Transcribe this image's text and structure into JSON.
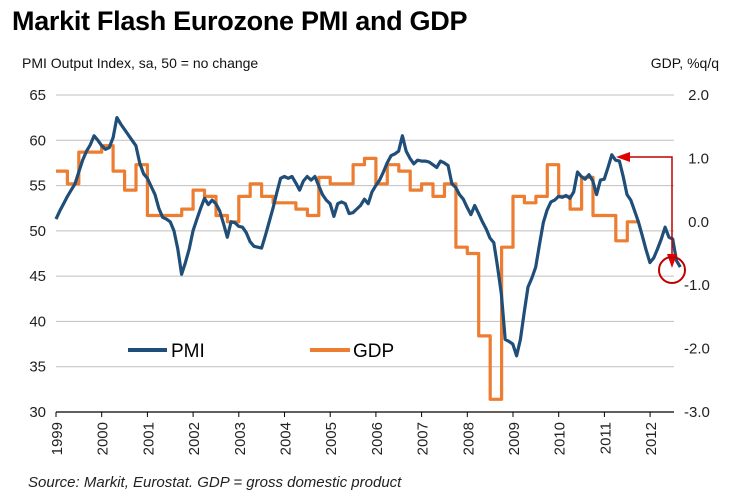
{
  "header": {
    "title": "Markit Flash Eurozone PMI and GDP",
    "left_unit": "PMI Output Index, sa, 50 = no change",
    "right_unit": "GDP, %q/q"
  },
  "footer": {
    "source": "Source: Markit, Eurostat. GDP = gross domestic product"
  },
  "chart_data": {
    "type": "line",
    "title": "Markit Flash Eurozone PMI and GDP",
    "ylabel": "PMI Output Index, sa, 50 = no change",
    "y2label": "GDP, %q/q",
    "xlabel": "",
    "xlim": [
      1999.0,
      2012.5
    ],
    "ylim": [
      30,
      65
    ],
    "y2lim": [
      -3.0,
      2.0
    ],
    "yticks": [
      "65",
      "60",
      "55",
      "50",
      "45",
      "40",
      "35",
      "30"
    ],
    "yticks_values": [
      65,
      60,
      55,
      50,
      45,
      40,
      35,
      30
    ],
    "y2ticks": [
      "2.0",
      "1.0",
      "0.0",
      "-1.0",
      "-2.0",
      "-3.0"
    ],
    "y2ticks_values": [
      2.0,
      1.0,
      0.0,
      -1.0,
      -2.0,
      -3.0
    ],
    "xticks": [
      "1999",
      "2000",
      "2001",
      "2002",
      "2003",
      "2004",
      "2005",
      "2006",
      "2007",
      "2008",
      "2009",
      "2010",
      "2011",
      "2012"
    ],
    "grid": true,
    "legend": {
      "placement": "lower-left",
      "entries": [
        "PMI",
        "GDP"
      ]
    },
    "colors": {
      "PMI": "#1f4e79",
      "GDP": "#ed7d31",
      "annotation": "#c00000",
      "grid": "#bfbfbf",
      "axis": "#000000"
    },
    "annotation": "Arrow from PMI peak (early 2011) down to latest PMI reading (mid-2012), latest reading circled",
    "series": [
      {
        "name": "PMI",
        "axis": "left",
        "x_start": 1999.0,
        "x_step": 0.0833,
        "values": [
          51.3,
          52.2,
          53.0,
          53.8,
          54.5,
          55.2,
          56.5,
          57.8,
          58.8,
          59.5,
          60.5,
          60.0,
          59.4,
          59.0,
          59.2,
          60.3,
          62.5,
          61.8,
          61.2,
          60.6,
          60.0,
          59.4,
          57.5,
          56.3,
          55.8,
          54.9,
          54.0,
          52.5,
          51.5,
          51.3,
          51.0,
          50.0,
          48.0,
          45.2,
          46.5,
          48.0,
          50.0,
          51.3,
          52.5,
          53.6,
          52.9,
          53.4,
          53.0,
          52.2,
          50.8,
          49.3,
          51.0,
          50.9,
          50.5,
          50.4,
          49.8,
          48.8,
          48.3,
          48.2,
          48.1,
          49.5,
          51.0,
          52.5,
          54.2,
          55.8,
          56.0,
          55.8,
          56.0,
          55.3,
          54.5,
          55.5,
          56.0,
          55.6,
          56.0,
          55.0,
          54.0,
          53.4,
          53.0,
          51.6,
          53.0,
          53.2,
          53.0,
          51.9,
          52.0,
          52.4,
          52.8,
          53.5,
          53.0,
          54.3,
          55.0,
          55.6,
          56.5,
          57.5,
          58.3,
          58.5,
          58.8,
          60.5,
          58.8,
          58.0,
          57.4,
          57.8,
          57.7,
          57.7,
          57.6,
          57.3,
          57.0,
          57.7,
          57.5,
          57.2,
          55.2,
          54.8,
          54.0,
          53.5,
          52.6,
          51.8,
          52.8,
          51.9,
          51.0,
          50.2,
          49.2,
          48.7,
          46.0,
          43.0,
          38.0,
          37.8,
          37.5,
          36.2,
          38.0,
          41.0,
          43.8,
          44.8,
          46.0,
          48.5,
          50.9,
          52.3,
          53.2,
          53.4,
          53.8,
          53.7,
          53.9,
          53.6,
          54.3,
          56.5,
          56.0,
          55.7,
          56.2,
          55.5,
          54.0,
          55.6,
          55.7,
          57.0,
          58.4,
          57.8,
          57.7,
          56.0,
          54.0,
          53.4,
          52.2,
          51.0,
          49.5,
          47.9,
          46.5,
          47.0,
          48.0,
          49.1,
          50.4,
          49.3,
          49.1,
          46.7,
          46.0
        ]
      },
      {
        "name": "GDP",
        "axis": "right",
        "frequency": "quarterly",
        "x_start": 1999.0,
        "x_step": 0.25,
        "values": [
          0.8,
          0.6,
          1.1,
          1.1,
          1.2,
          0.8,
          0.5,
          0.9,
          0.1,
          0.1,
          0.1,
          0.2,
          0.5,
          0.4,
          0.1,
          0.0,
          0.4,
          0.6,
          0.4,
          0.3,
          0.3,
          0.2,
          0.1,
          0.7,
          0.6,
          0.6,
          0.9,
          1.0,
          0.6,
          0.9,
          0.8,
          0.5,
          0.6,
          0.4,
          0.6,
          -0.4,
          -0.5,
          -1.8,
          -2.8,
          -0.4,
          0.4,
          0.3,
          0.4,
          0.9,
          0.4,
          0.2,
          0.7,
          0.1,
          0.1,
          -0.3,
          0.0
        ]
      }
    ]
  }
}
